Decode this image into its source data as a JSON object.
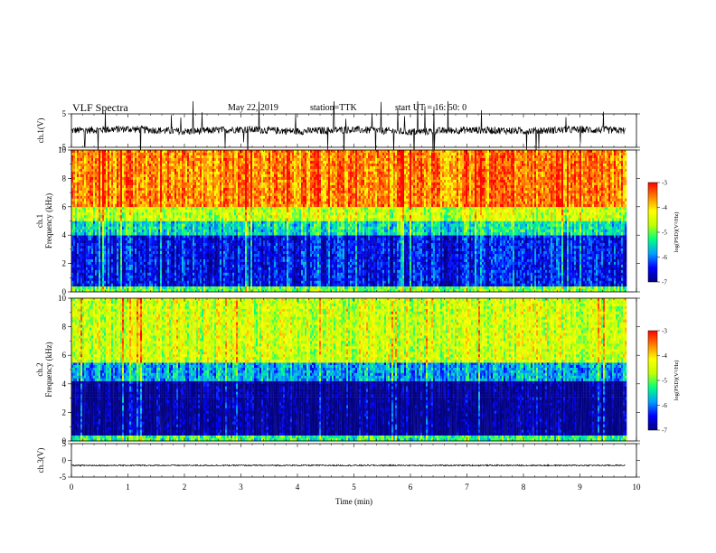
{
  "header": {
    "title": "VLF Spectra",
    "date": "May 22, 2019",
    "station": "station=TTK",
    "start": "start UT =  16: 50: 0"
  },
  "colors": {
    "waveform": "#000000",
    "background_spectrum": "#000000",
    "colormap": [
      "#000080",
      "#0000ff",
      "#00a0ff",
      "#00ff80",
      "#c0ff00",
      "#ffff00",
      "#ff8000",
      "#ff0000",
      "#ffffff"
    ]
  },
  "chart_data": [
    {
      "type": "line",
      "panel": "ch1-waveform",
      "ylabel": "ch.1(V)",
      "ylim": [
        -5,
        5
      ],
      "yticks": [
        "5",
        "-5"
      ],
      "x": [
        0,
        1,
        2,
        3,
        4,
        5,
        6,
        7,
        8,
        9,
        9.8
      ],
      "series": [
        {
          "values": [
            0,
            0.5,
            -0.3,
            0.4,
            -0.2,
            0.3,
            -0.4,
            0.2,
            -0.1,
            0.3,
            0
          ]
        }
      ]
    },
    {
      "type": "heatmap",
      "panel": "ch1-spectrum",
      "ylabel": "ch.1\nFrequency (kHz)",
      "ylim": [
        0,
        10
      ],
      "yticks": [
        "0",
        "2",
        "4",
        "6",
        "8",
        "10"
      ],
      "xlim": [
        0,
        10
      ],
      "data_end_min": 9.8,
      "colorbar": {
        "label": "log(PSD)(V²/Hz)",
        "range": [
          -7,
          -3
        ],
        "ticks": [
          "-3",
          "-4",
          "-5",
          "-6",
          "-7"
        ]
      },
      "band_levels": [
        {
          "freq_kHz": [
            0,
            0.4
          ],
          "log_psd": -5
        },
        {
          "freq_kHz": [
            0.4,
            4.0
          ],
          "log_psd": -6.5
        },
        {
          "freq_kHz": [
            4.0,
            5.0
          ],
          "log_psd": -5.5
        },
        {
          "freq_kHz": [
            5.0,
            6.0
          ],
          "log_psd": -4.6
        },
        {
          "freq_kHz": [
            6.0,
            10.0
          ],
          "log_psd": -3.6
        }
      ]
    },
    {
      "type": "heatmap",
      "panel": "ch2-spectrum",
      "ylabel": "ch.2\nFrequency (kHz)",
      "ylim": [
        0,
        10
      ],
      "yticks": [
        "0",
        "2",
        "4",
        "6",
        "8",
        "10"
      ],
      "xlim": [
        0,
        10
      ],
      "data_end_min": 9.8,
      "colorbar": {
        "label": "log(PSD)(V²/Hz)",
        "range": [
          -7,
          -3
        ],
        "ticks": [
          "-3",
          "-4",
          "-5",
          "-6",
          "-7"
        ]
      },
      "band_levels": [
        {
          "freq_kHz": [
            0,
            0.4
          ],
          "log_psd": -5.2
        },
        {
          "freq_kHz": [
            0.4,
            4.2
          ],
          "log_psd": -7
        },
        {
          "freq_kHz": [
            4.2,
            5.5
          ],
          "log_psd": -5.8
        },
        {
          "freq_kHz": [
            5.5,
            10.0
          ],
          "log_psd": -4.5
        }
      ]
    },
    {
      "type": "line",
      "panel": "ch3-waveform",
      "ylabel": "ch.3(V)",
      "ylim": [
        -5,
        5
      ],
      "yticks": [
        "5",
        "0",
        "-5"
      ],
      "x": [
        0,
        9.8
      ],
      "series": [
        {
          "values": [
            -1.5,
            -1.5
          ]
        }
      ]
    }
  ],
  "xaxis": {
    "label": "Time (min)",
    "ticks": [
      "0",
      "1",
      "2",
      "3",
      "4",
      "5",
      "6",
      "7",
      "8",
      "9",
      "10"
    ],
    "range": [
      0,
      10
    ]
  }
}
